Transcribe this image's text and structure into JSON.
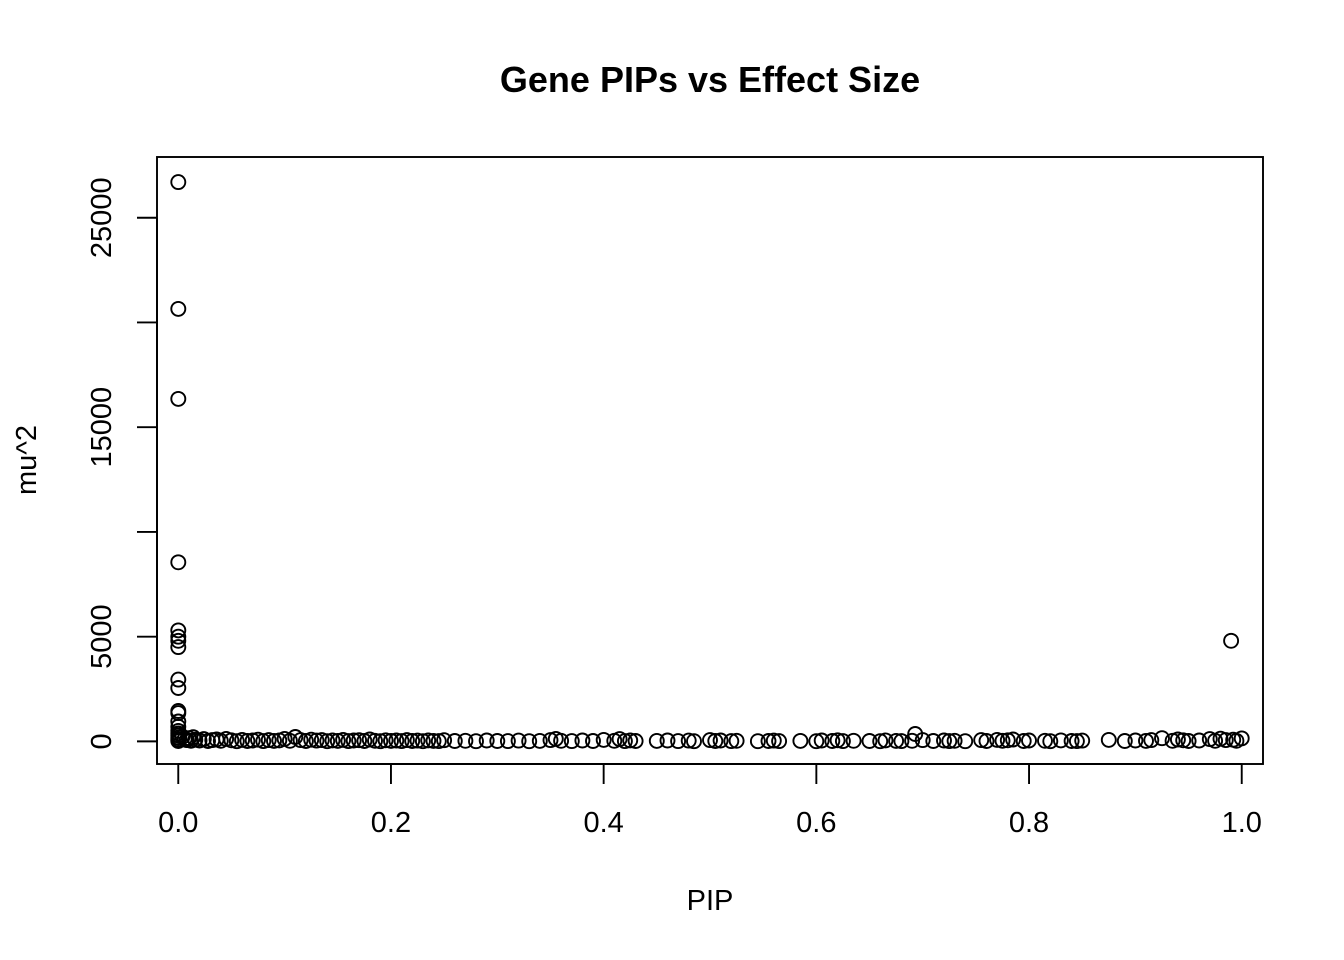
{
  "chart_data": {
    "type": "scatter",
    "title": "Gene PIPs vs Effect Size",
    "xlabel": "PIP",
    "ylabel": "mu^2",
    "xlim": [
      -0.02,
      1.02
    ],
    "ylim": [
      -1080,
      27900
    ],
    "x_ticks": [
      0.0,
      0.2,
      0.4,
      0.6,
      0.8,
      1.0
    ],
    "x_tick_labels": [
      "0.0",
      "0.2",
      "0.4",
      "0.6",
      "0.8",
      "1.0"
    ],
    "y_ticks": [
      0,
      5000,
      10000,
      15000,
      20000,
      25000
    ],
    "y_tick_labels": [
      "0",
      "5000",
      "",
      "15000",
      "",
      "25000"
    ],
    "grid": false,
    "legend": "none",
    "marker": "open-circle",
    "colors": {
      "points": "#000000",
      "frame": "#000000"
    },
    "points": [
      [
        0.0,
        26700
      ],
      [
        0.0,
        20650
      ],
      [
        0.0,
        16350
      ],
      [
        0.0,
        8550
      ],
      [
        0.0,
        5300
      ],
      [
        0.0,
        5000
      ],
      [
        0.0,
        4800
      ],
      [
        0.0,
        4500
      ],
      [
        0.0,
        2950
      ],
      [
        0.0,
        2550
      ],
      [
        0.0,
        1450
      ],
      [
        0.0,
        1350
      ],
      [
        0.0,
        950
      ],
      [
        0.0,
        700
      ],
      [
        0.0,
        500
      ],
      [
        0.0,
        380
      ],
      [
        0.0,
        280
      ],
      [
        0.0,
        180
      ],
      [
        0.0,
        90
      ],
      [
        0.0,
        20
      ],
      [
        0.004,
        220
      ],
      [
        0.006,
        120
      ],
      [
        0.008,
        60
      ],
      [
        0.01,
        150
      ],
      [
        0.012,
        30
      ],
      [
        0.014,
        200
      ],
      [
        0.016,
        80
      ],
      [
        0.02,
        40
      ],
      [
        0.024,
        110
      ],
      [
        0.028,
        20
      ],
      [
        0.032,
        60
      ],
      [
        0.036,
        90
      ],
      [
        0.04,
        30
      ],
      [
        0.045,
        120
      ],
      [
        0.05,
        50
      ],
      [
        0.055,
        10
      ],
      [
        0.06,
        70
      ],
      [
        0.065,
        20
      ],
      [
        0.07,
        40
      ],
      [
        0.075,
        80
      ],
      [
        0.08,
        15
      ],
      [
        0.085,
        60
      ],
      [
        0.09,
        25
      ],
      [
        0.095,
        45
      ],
      [
        0.1,
        120
      ],
      [
        0.105,
        30
      ],
      [
        0.11,
        210
      ],
      [
        0.115,
        60
      ],
      [
        0.12,
        20
      ],
      [
        0.125,
        80
      ],
      [
        0.13,
        35
      ],
      [
        0.135,
        60
      ],
      [
        0.14,
        10
      ],
      [
        0.145,
        45
      ],
      [
        0.15,
        25
      ],
      [
        0.155,
        70
      ],
      [
        0.16,
        15
      ],
      [
        0.165,
        40
      ],
      [
        0.17,
        55
      ],
      [
        0.175,
        20
      ],
      [
        0.18,
        90
      ],
      [
        0.185,
        30
      ],
      [
        0.19,
        10
      ],
      [
        0.195,
        50
      ],
      [
        0.2,
        25
      ],
      [
        0.205,
        40
      ],
      [
        0.21,
        15
      ],
      [
        0.215,
        60
      ],
      [
        0.22,
        20
      ],
      [
        0.225,
        35
      ],
      [
        0.23,
        10
      ],
      [
        0.235,
        45
      ],
      [
        0.24,
        25
      ],
      [
        0.245,
        15
      ],
      [
        0.25,
        55
      ],
      [
        0.26,
        20
      ],
      [
        0.27,
        30
      ],
      [
        0.28,
        10
      ],
      [
        0.29,
        40
      ],
      [
        0.3,
        20
      ],
      [
        0.31,
        15
      ],
      [
        0.32,
        35
      ],
      [
        0.33,
        10
      ],
      [
        0.34,
        25
      ],
      [
        0.35,
        60
      ],
      [
        0.355,
        120
      ],
      [
        0.36,
        30
      ],
      [
        0.37,
        15
      ],
      [
        0.38,
        40
      ],
      [
        0.39,
        20
      ],
      [
        0.4,
        70
      ],
      [
        0.41,
        30
      ],
      [
        0.415,
        110
      ],
      [
        0.42,
        15
      ],
      [
        0.425,
        45
      ],
      [
        0.43,
        20
      ],
      [
        0.45,
        25
      ],
      [
        0.46,
        40
      ],
      [
        0.47,
        15
      ],
      [
        0.48,
        35
      ],
      [
        0.485,
        10
      ],
      [
        0.5,
        60
      ],
      [
        0.505,
        20
      ],
      [
        0.51,
        40
      ],
      [
        0.52,
        15
      ],
      [
        0.525,
        30
      ],
      [
        0.545,
        10
      ],
      [
        0.555,
        20
      ],
      [
        0.56,
        35
      ],
      [
        0.565,
        15
      ],
      [
        0.585,
        25
      ],
      [
        0.6,
        10
      ],
      [
        0.605,
        40
      ],
      [
        0.615,
        20
      ],
      [
        0.62,
        50
      ],
      [
        0.625,
        15
      ],
      [
        0.635,
        30
      ],
      [
        0.65,
        20
      ],
      [
        0.66,
        10
      ],
      [
        0.665,
        45
      ],
      [
        0.675,
        25
      ],
      [
        0.68,
        15
      ],
      [
        0.69,
        30
      ],
      [
        0.693,
        350
      ],
      [
        0.7,
        60
      ],
      [
        0.71,
        20
      ],
      [
        0.72,
        40
      ],
      [
        0.725,
        15
      ],
      [
        0.73,
        30
      ],
      [
        0.74,
        10
      ],
      [
        0.755,
        60
      ],
      [
        0.76,
        20
      ],
      [
        0.77,
        70
      ],
      [
        0.775,
        30
      ],
      [
        0.78,
        50
      ],
      [
        0.785,
        90
      ],
      [
        0.795,
        20
      ],
      [
        0.8,
        40
      ],
      [
        0.815,
        30
      ],
      [
        0.82,
        10
      ],
      [
        0.83,
        45
      ],
      [
        0.84,
        20
      ],
      [
        0.845,
        15
      ],
      [
        0.85,
        35
      ],
      [
        0.875,
        70
      ],
      [
        0.89,
        20
      ],
      [
        0.9,
        40
      ],
      [
        0.91,
        25
      ],
      [
        0.915,
        60
      ],
      [
        0.925,
        150
      ],
      [
        0.935,
        30
      ],
      [
        0.94,
        90
      ],
      [
        0.945,
        50
      ],
      [
        0.95,
        20
      ],
      [
        0.96,
        40
      ],
      [
        0.97,
        110
      ],
      [
        0.975,
        30
      ],
      [
        0.98,
        130
      ],
      [
        0.985,
        60
      ],
      [
        0.99,
        4800
      ],
      [
        0.992,
        80
      ],
      [
        0.995,
        30
      ],
      [
        1.0,
        140
      ]
    ]
  }
}
